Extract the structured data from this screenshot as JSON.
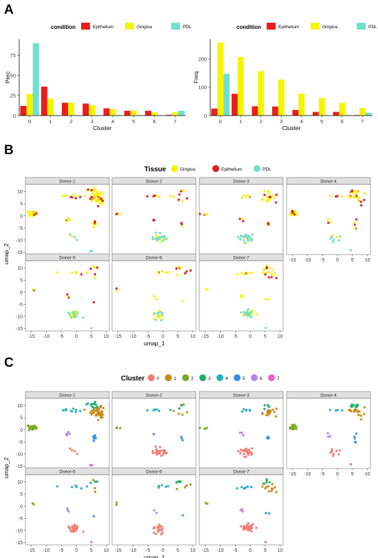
{
  "panels": {
    "a": "A",
    "b": "B",
    "c": "C"
  },
  "colors": {
    "condition": {
      "Epithelium": "#ee1c1c",
      "Gingiva": "#f5f500",
      "PDL": "#6fe0cf"
    },
    "tissue": {
      "Gingiva": "#f5f500",
      "Epithelium": "#e01b1b",
      "PDL": "#72dcc8"
    },
    "clusters": [
      "#f27b72",
      "#c88a14",
      "#7aaa1e",
      "#1eb06a",
      "#22b0bf",
      "#2f8fe8",
      "#b087e8",
      "#ee5fc8"
    ]
  },
  "chart_data": [
    {
      "id": "A-left",
      "type": "bar",
      "legend_title": "condition",
      "legend_position": "top",
      "xlabel": "Cluster",
      "ylabel": "Perc",
      "categories": [
        "0",
        "1",
        "2",
        "3",
        "4",
        "5",
        "6",
        "7"
      ],
      "ylim": [
        0,
        95
      ],
      "yticks": [
        0,
        25,
        50,
        75
      ],
      "series": [
        {
          "name": "Epithelium",
          "values": [
            12,
            36,
            16,
            15,
            9,
            6,
            6,
            1
          ]
        },
        {
          "name": "Gingiva",
          "values": [
            27,
            21,
            16,
            13,
            8,
            6,
            4,
            4
          ]
        },
        {
          "name": "PDL",
          "values": [
            90,
            0,
            0,
            0,
            0,
            0,
            0,
            6
          ]
        }
      ]
    },
    {
      "id": "A-right",
      "type": "bar",
      "legend_title": "condition",
      "legend_position": "top",
      "xlabel": "Cluster",
      "ylabel": "Freq",
      "categories": [
        "0",
        "1",
        "2",
        "3",
        "4",
        "5",
        "6",
        "7"
      ],
      "ylim": [
        0,
        270
      ],
      "yticks": [
        0,
        100,
        200
      ],
      "series": [
        {
          "name": "Epithelium",
          "values": [
            25,
            77,
            33,
            32,
            20,
            13,
            13,
            2
          ]
        },
        {
          "name": "Gingiva",
          "values": [
            258,
            207,
            157,
            127,
            78,
            62,
            45,
            27
          ]
        },
        {
          "name": "PDL",
          "values": [
            148,
            0,
            0,
            0,
            0,
            0,
            0,
            10
          ]
        }
      ]
    },
    {
      "id": "B",
      "type": "scatter",
      "legend_title": "Tissue",
      "legend_entries": [
        "Gingiva",
        "Epithelium",
        "PDL"
      ],
      "legend_position": "top",
      "xlabel": "umap_1",
      "ylabel": "umap_2",
      "xlim": [
        -17,
        11
      ],
      "ylim": [
        -16,
        13
      ],
      "xticks": [
        -15,
        -10,
        -5,
        0,
        5,
        10
      ],
      "yticks": [
        10,
        5,
        0,
        -5,
        -10,
        -15
      ],
      "facets": [
        "Donor-1",
        "Donor-2",
        "Donor-3",
        "Donor-4",
        "Donor-5",
        "Donor-6",
        "Donor-7"
      ],
      "groups": [
        {
          "cluster": 0,
          "cx": -1,
          "cy": -9,
          "sx": 1.3,
          "sy": 0.8,
          "colors": [
            "PDL",
            "PDL",
            "PDL",
            "Gingiva"
          ]
        },
        {
          "cluster": 1,
          "cx": 6.5,
          "cy": 7.5,
          "sx": 1.5,
          "sy": 1.2,
          "colors": [
            "Gingiva",
            "Gingiva",
            "Epithelium"
          ]
        },
        {
          "cluster": 2,
          "cx": -15,
          "cy": 1,
          "sx": 0.6,
          "sy": 0.5,
          "colors": [
            "Gingiva",
            "Gingiva",
            "Epithelium"
          ]
        },
        {
          "cluster": 3,
          "cx": 5.5,
          "cy": 10,
          "sx": 0.8,
          "sy": 0.6,
          "colors": [
            "Gingiva",
            "Epithelium"
          ]
        },
        {
          "cluster": 4,
          "cx": -1.5,
          "cy": 8,
          "sx": 1.6,
          "sy": 0.3,
          "colors": [
            "Gingiva",
            "Gingiva",
            "Epithelium"
          ]
        },
        {
          "cluster": 5,
          "cx": 6,
          "cy": -3.5,
          "sx": 0.4,
          "sy": 0.8,
          "colors": [
            "Gingiva",
            "Epithelium"
          ]
        },
        {
          "cluster": 6,
          "cx": -3,
          "cy": -2,
          "sx": 0.4,
          "sy": 0.6,
          "colors": [
            "Gingiva",
            "Epithelium"
          ]
        },
        {
          "cluster": 7,
          "cx": 5,
          "cy": -14.5,
          "sx": 0.3,
          "sy": 0.3,
          "colors": [
            "PDL"
          ]
        }
      ]
    },
    {
      "id": "C",
      "type": "scatter",
      "legend_title": "Cluster",
      "legend_entries": [
        "0",
        "1",
        "2",
        "3",
        "4",
        "5",
        "6",
        "7"
      ],
      "legend_position": "top",
      "xlabel": "umap_1",
      "ylabel": "umap_2",
      "xlim": [
        -17,
        11
      ],
      "ylim": [
        -16,
        13
      ],
      "xticks": [
        -15,
        -10,
        -5,
        0,
        5,
        10
      ],
      "yticks": [
        10,
        5,
        0,
        -5,
        -10,
        -15
      ],
      "facets": [
        "Donor-1",
        "Donor-2",
        "Donor-3",
        "Donor-4",
        "Donor-5",
        "Donor-6",
        "Donor-7"
      ]
    }
  ]
}
